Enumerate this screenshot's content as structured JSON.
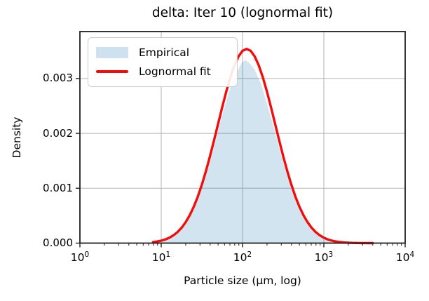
{
  "chart_data": {
    "type": "area+line",
    "title": "delta: Iter 10 (lognormal fit)",
    "x_axis": {
      "label": "Particle size (μm, log)",
      "scale": "log",
      "ticks": [
        {
          "u": 0,
          "base": "10",
          "exp": "0"
        },
        {
          "u": 1,
          "base": "10",
          "exp": "1"
        },
        {
          "u": 2,
          "base": "10",
          "exp": "2"
        },
        {
          "u": 3,
          "base": "10",
          "exp": "3"
        },
        {
          "u": 4,
          "base": "10",
          "exp": "4"
        }
      ],
      "xlim": [
        1,
        10000
      ]
    },
    "y_axis": {
      "label": "Density",
      "ticks": [
        {
          "v": 0.0,
          "label": "0.000"
        },
        {
          "v": 0.001,
          "label": "0.001"
        },
        {
          "v": 0.002,
          "label": "0.002"
        },
        {
          "v": 0.003,
          "label": "0.003"
        }
      ]
    },
    "ylim": [
      0,
      0.003856
    ],
    "grid": true,
    "legend": {
      "position": "upper-left",
      "items": [
        {
          "label": "Empirical",
          "swatch": "area"
        },
        {
          "label": "Lognormal fit",
          "swatch": "line"
        }
      ]
    },
    "series": [
      {
        "name": "Empirical",
        "type": "area",
        "color": "#1f77b4",
        "opacity": 0.2,
        "log10_x": [
          0.95,
          1.03,
          1.1,
          1.18,
          1.25,
          1.33,
          1.4,
          1.48,
          1.55,
          1.63,
          1.7,
          1.78,
          1.85,
          1.93,
          2.0,
          2.04,
          2.08,
          2.15,
          2.23,
          2.3,
          2.38,
          2.45,
          2.53,
          2.6,
          2.68,
          2.75,
          2.83,
          2.9,
          2.98,
          3.05,
          3.13,
          3.2
        ],
        "y": [
          1.5e-05,
          4e-05,
          9e-05,
          0.00017,
          0.00027,
          0.00043,
          0.00064,
          0.00093,
          0.00124,
          0.00164,
          0.00206,
          0.00248,
          0.00284,
          0.00312,
          0.00331,
          0.00333,
          0.00329,
          0.00316,
          0.00289,
          0.00254,
          0.00213,
          0.00173,
          0.00133,
          0.00099,
          0.0007,
          0.00048,
          0.00031,
          0.000195,
          0.000115,
          6.3e-05,
          3.2e-05,
          1.5e-05
        ]
      },
      {
        "name": "Lognormal fit",
        "type": "line",
        "color": "#f20d0d",
        "width": 3.4,
        "log10_x": [
          0.9,
          0.95,
          1.0,
          1.05,
          1.1,
          1.15,
          1.2,
          1.25,
          1.3,
          1.35,
          1.4,
          1.45,
          1.5,
          1.55,
          1.6,
          1.65,
          1.7,
          1.75,
          1.8,
          1.85,
          1.9,
          1.95,
          2.0,
          2.05,
          2.1,
          2.15,
          2.2,
          2.25,
          2.3,
          2.35,
          2.4,
          2.45,
          2.5,
          2.55,
          2.6,
          2.65,
          2.7,
          2.75,
          2.8,
          2.85,
          2.9,
          2.95,
          3.0,
          3.05,
          3.1,
          3.15,
          3.2,
          3.25,
          3.3,
          3.35,
          3.4,
          3.45,
          3.5,
          3.55,
          3.6
        ],
        "y": [
          1.87e-05,
          2.91e-05,
          4.46e-05,
          6.7e-05,
          9.87e-05,
          0.000142,
          0.000201,
          0.000279,
          0.00038,
          0.000507,
          0.000662,
          0.000848,
          0.001066,
          0.001313,
          0.001585,
          0.001876,
          0.002177,
          0.002477,
          0.002763,
          0.003021,
          0.003238,
          0.003402,
          0.003505,
          0.00354,
          0.003505,
          0.003402,
          0.003238,
          0.003021,
          0.002763,
          0.002477,
          0.002177,
          0.001876,
          0.001585,
          0.001313,
          0.001066,
          0.000848,
          0.000662,
          0.000507,
          0.00038,
          0.000279,
          0.000201,
          0.000142,
          9.87e-05,
          6.7e-05,
          4.46e-05,
          2.91e-05,
          1.87e-05,
          1.17e-05,
          7.2e-06,
          4.3e-06,
          2.5e-06,
          1.5e-06,
          8e-07,
          5e-07,
          3e-07
        ]
      }
    ],
    "colors": {
      "grid": "#b3b3b3",
      "frame": "#1f1f1f",
      "tick": "#1f1f1f",
      "red_line": "#f20d0d",
      "area_fill_rendered": "#d9e8f8",
      "text": "#000000"
    }
  }
}
